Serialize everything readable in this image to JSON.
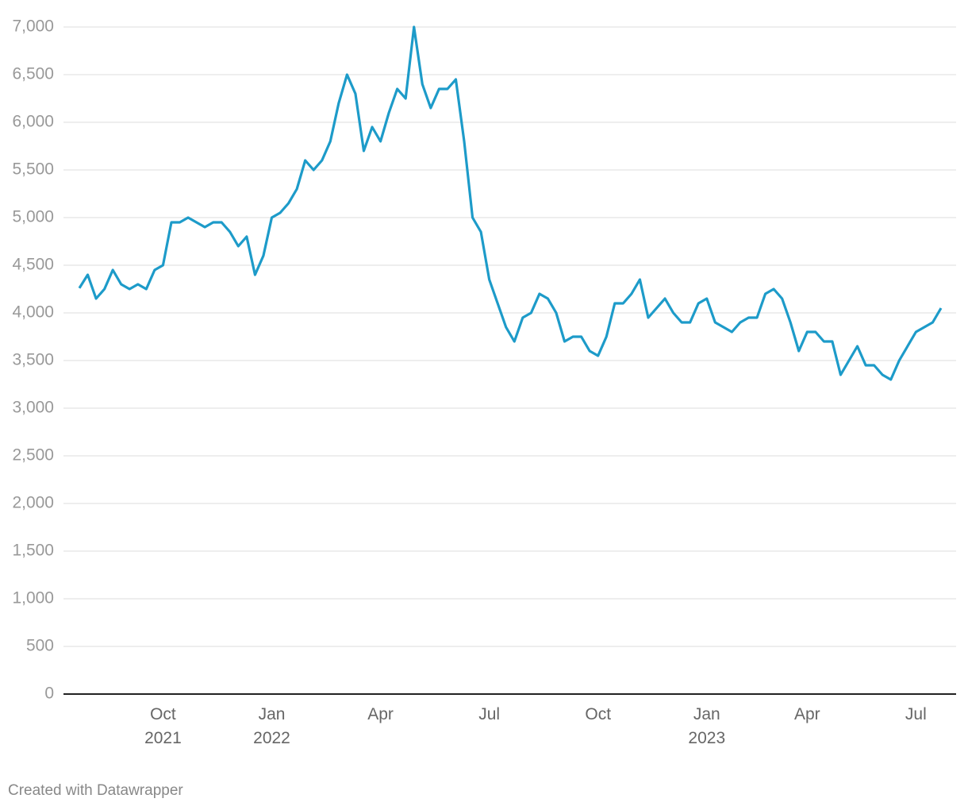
{
  "chart_data": {
    "type": "line",
    "categories": [
      null,
      null,
      null,
      null,
      null,
      null,
      null,
      null,
      null,
      null,
      "Oct\n2021",
      null,
      null,
      null,
      null,
      null,
      null,
      null,
      null,
      null,
      null,
      null,
      null,
      "Jan\n2022",
      null,
      null,
      null,
      null,
      null,
      null,
      null,
      null,
      null,
      null,
      null,
      null,
      "Apr",
      null,
      null,
      null,
      null,
      null,
      null,
      null,
      null,
      null,
      null,
      null,
      null,
      "Jul",
      null,
      null,
      null,
      null,
      null,
      null,
      null,
      null,
      null,
      null,
      null,
      null,
      "Oct",
      null,
      null,
      null,
      null,
      null,
      null,
      null,
      null,
      null,
      null,
      null,
      null,
      "Jan\n2023",
      null,
      null,
      null,
      null,
      null,
      null,
      null,
      null,
      null,
      null,
      null,
      "Apr",
      null,
      null,
      null,
      null,
      null,
      null,
      null,
      null,
      null,
      null,
      null,
      null,
      "Jul",
      null,
      null,
      null
    ],
    "series": [
      {
        "color": "#1d9bc9",
        "values": [
          4260,
          4400,
          4150,
          4250,
          4450,
          4300,
          4250,
          4300,
          4250,
          4450,
          4500,
          4950,
          4950,
          5000,
          4950,
          4900,
          4950,
          4950,
          4850,
          4700,
          4800,
          4400,
          4600,
          5000,
          5050,
          5150,
          5300,
          5600,
          5500,
          5600,
          5800,
          6200,
          6500,
          6300,
          5700,
          5950,
          5800,
          6100,
          6350,
          6250,
          7000,
          6400,
          6150,
          6350,
          6350,
          6450,
          5800,
          5000,
          4850,
          4350,
          4100,
          3850,
          3700,
          3950,
          4000,
          4200,
          4150,
          4000,
          3700,
          3750,
          3750,
          3600,
          3550,
          3750,
          4100,
          4100,
          4200,
          4350,
          3950,
          4050,
          4150,
          4000,
          3900,
          3900,
          4100,
          4150,
          3900,
          3850,
          3800,
          3900,
          3950,
          3950,
          4200,
          4250,
          4150,
          3900,
          3600,
          3800,
          3800,
          3700,
          3700,
          3350,
          3500,
          3650,
          3450,
          3450,
          3350,
          3300,
          3500,
          3650,
          3800,
          3850,
          3900,
          4050
        ]
      }
    ],
    "ylim": [
      0,
      7000
    ],
    "yticks": [
      0,
      500,
      {
        "value": 1000,
        "label": "1,000"
      },
      {
        "value": 1500,
        "label": "1,500"
      },
      {
        "value": 2000,
        "label": "2,000"
      },
      {
        "value": 2500,
        "label": "2,500"
      },
      {
        "value": 3000,
        "label": "3,000"
      },
      {
        "value": 3500,
        "label": "3,500"
      },
      {
        "value": 4000,
        "label": "4,000"
      },
      {
        "value": 4500,
        "label": "4,500"
      },
      {
        "value": 5000,
        "label": "5,000"
      },
      {
        "value": 5500,
        "label": "5,500"
      },
      {
        "value": 6000,
        "label": "6,000"
      },
      {
        "value": 6500,
        "label": "6,500"
      },
      {
        "value": 7000,
        "label": "7,000"
      }
    ],
    "grid": true
  },
  "footer": "Created with Datawrapper"
}
